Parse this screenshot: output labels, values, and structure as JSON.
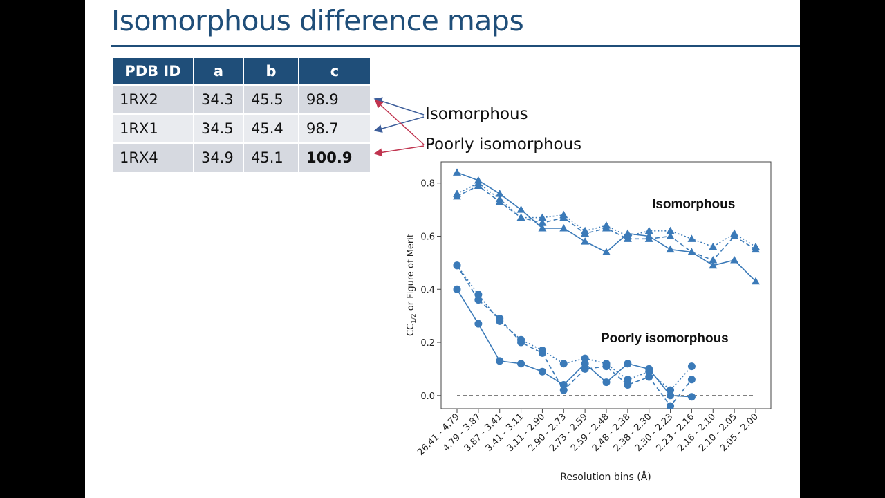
{
  "slide": {
    "title": "Isomorphous difference maps"
  },
  "table": {
    "headers": [
      "PDB ID",
      "a",
      "b",
      "c"
    ],
    "rows": [
      {
        "id": "1RX2",
        "a": "34.3",
        "b": "45.5",
        "c": "98.9"
      },
      {
        "id": "1RX1",
        "a": "34.5",
        "b": "45.4",
        "c": "98.7"
      },
      {
        "id": "1RX4",
        "a": "34.9",
        "b": "45.1",
        "c": "100.9"
      }
    ]
  },
  "callouts": {
    "isomorphous": "Isomorphous",
    "poorly": "Poorly isomorphous"
  },
  "colors": {
    "title": "#1f4e79",
    "header_bg": "#1f4e79",
    "series": "#3b7ab8",
    "arrow_iso": "#3d5e9a",
    "arrow_poor": "#c0344f"
  },
  "chart_data": {
    "type": "line",
    "xlabel": "Resolution bins (Å)",
    "ylabel": "CC1/2 or Figure of Merit",
    "ylim": [
      -0.05,
      0.88
    ],
    "yticks": [
      0.0,
      0.2,
      0.4,
      0.6,
      0.8
    ],
    "ytick_labels": [
      "0.0",
      "0.2",
      "0.4",
      "0.6",
      "0.8"
    ],
    "grid": false,
    "reference_line": 0.0,
    "categories": [
      "26.41 - 4.79",
      "4.79 - 3.87",
      "3.87 - 3.41",
      "3.41 - 3.11",
      "3.11 - 2.90",
      "2.90 - 2.73",
      "2.73 - 2.59",
      "2.59 - 2.48",
      "2.48 - 2.38",
      "2.38 - 2.30",
      "2.30 - 2.23",
      "2.23 - 2.16",
      "2.16 - 2.10",
      "2.10 - 2.05",
      "2.05 - 2.00"
    ],
    "annotations": [
      {
        "text": "Isomorphous"
      },
      {
        "text": "Poorly isomorphous"
      }
    ],
    "series": [
      {
        "marker": "triangle",
        "style": "solid",
        "values": [
          0.84,
          0.81,
          0.76,
          0.7,
          0.63,
          0.63,
          0.58,
          0.54,
          0.61,
          0.6,
          0.55,
          0.54,
          0.49,
          0.51,
          0.43
        ]
      },
      {
        "marker": "triangle",
        "style": "dashed",
        "values": [
          0.75,
          0.79,
          0.73,
          0.67,
          0.65,
          0.67,
          0.61,
          0.63,
          0.59,
          0.59,
          0.6,
          0.54,
          0.51,
          0.6,
          0.55
        ]
      },
      {
        "marker": "triangle",
        "style": "dotted",
        "values": [
          0.76,
          0.8,
          0.74,
          0.67,
          0.67,
          0.68,
          0.62,
          0.64,
          0.6,
          0.62,
          0.62,
          0.59,
          0.56,
          0.61,
          0.56
        ]
      },
      {
        "marker": "circle",
        "style": "solid",
        "values": [
          0.4,
          0.27,
          0.13,
          0.12,
          0.09,
          0.04,
          0.12,
          0.05,
          0.12,
          0.1,
          0.0,
          -0.005,
          null,
          null,
          null
        ]
      },
      {
        "marker": "circle",
        "style": "dashed",
        "values": [
          0.49,
          0.36,
          0.29,
          0.2,
          0.16,
          0.02,
          0.1,
          0.11,
          0.04,
          0.07,
          -0.04,
          0.06,
          null,
          null,
          null
        ]
      },
      {
        "marker": "circle",
        "style": "dotted",
        "values": [
          0.49,
          0.38,
          0.28,
          0.21,
          0.17,
          0.12,
          0.14,
          0.12,
          0.06,
          0.09,
          0.02,
          0.11,
          null,
          null,
          null
        ]
      }
    ]
  }
}
